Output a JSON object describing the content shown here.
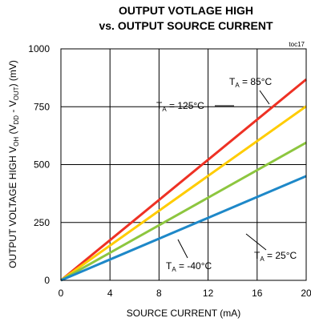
{
  "chart_data": {
    "type": "line",
    "title_line1": "OUTPUT VOTLAGE HIGH",
    "title_line2": "vs.  OUTPUT SOURCE CURRENT",
    "tag": "toc17",
    "xlabel": "SOURCE CURRENT (mA)",
    "ylabel_parts": {
      "a": "OUTPUT VOLTAGE HIGH V",
      "a_sub": "OH",
      "b": " (V",
      "b_sub": "DD",
      "c": " - V",
      "c_sub": "OUT",
      "d": ") (mV)"
    },
    "xlim": [
      0,
      20
    ],
    "ylim": [
      0,
      1000
    ],
    "x_ticks": [
      "0",
      "4",
      "8",
      "12",
      "16",
      "20"
    ],
    "y_ticks": [
      "0",
      "250",
      "500",
      "750",
      "1000"
    ],
    "grid": true,
    "series": [
      {
        "name": "T_A = 125°C",
        "color": "#ee3124",
        "x": [
          0,
          20
        ],
        "y": [
          0,
          868
        ]
      },
      {
        "name": "T_A = 85°C",
        "color": "#ffcc00",
        "x": [
          0,
          20
        ],
        "y": [
          0,
          752
        ]
      },
      {
        "name": "T_A = 25°C",
        "color": "#8dc63f",
        "x": [
          0,
          20
        ],
        "y": [
          0,
          595
        ]
      },
      {
        "name": "T_A = -40°C",
        "color": "#1e88c8",
        "x": [
          0,
          20
        ],
        "y": [
          0,
          450
        ]
      }
    ],
    "annotations": [
      {
        "pre": "T",
        "sub": "A",
        "post": " = 85°C"
      },
      {
        "pre": "T",
        "sub": "A",
        "post": " = 125°C"
      },
      {
        "pre": "T",
        "sub": "A",
        "post": " = 25°C"
      },
      {
        "pre": "T",
        "sub": "A",
        "post": " = -40°C"
      }
    ]
  }
}
